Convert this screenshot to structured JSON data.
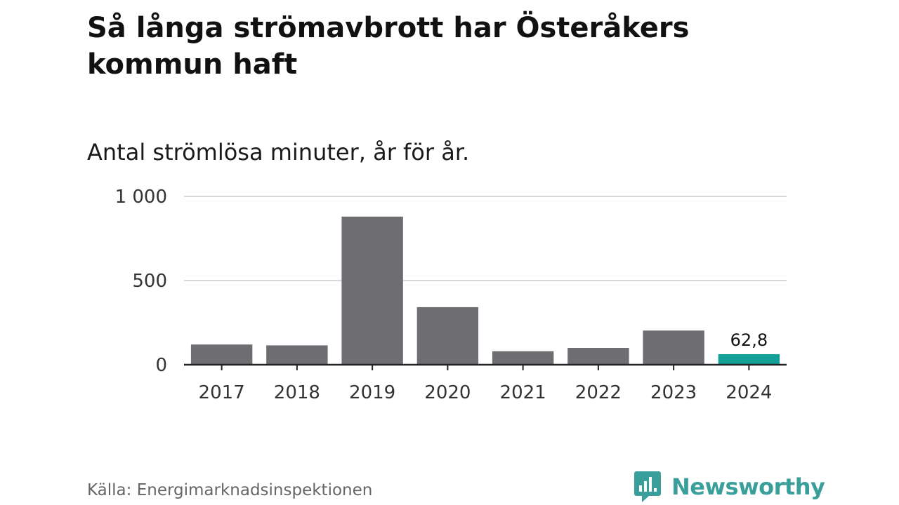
{
  "header": {
    "title": "Så långa strömavbrott har Österåkers kommun haft",
    "subtitle": "Antal strömlösa minuter, år för år."
  },
  "footer": {
    "source": "Källa: Energimarknadsinspektionen",
    "brand": "Newsworthy"
  },
  "colors": {
    "bar": "#6e6d72",
    "highlight": "#12a097",
    "grid": "#d9d9d9",
    "axis": "#222222",
    "brand": "#3a9f9a"
  },
  "chart_data": {
    "type": "bar",
    "title": "Så långa strömavbrott har Österåkers kommun haft",
    "subtitle": "Antal strömlösa minuter, år för år.",
    "categories": [
      "2017",
      "2018",
      "2019",
      "2020",
      "2021",
      "2022",
      "2023",
      "2024"
    ],
    "values": [
      120,
      115,
      880,
      342,
      80,
      100,
      203,
      62.8
    ],
    "highlight_index": 7,
    "data_labels": {
      "7": "62,8"
    },
    "ylim": [
      0,
      1000
    ],
    "yticks": [
      0,
      500,
      1000
    ],
    "ytick_labels": [
      "0",
      "500",
      "1 000"
    ],
    "grid": true,
    "legend": "none"
  }
}
